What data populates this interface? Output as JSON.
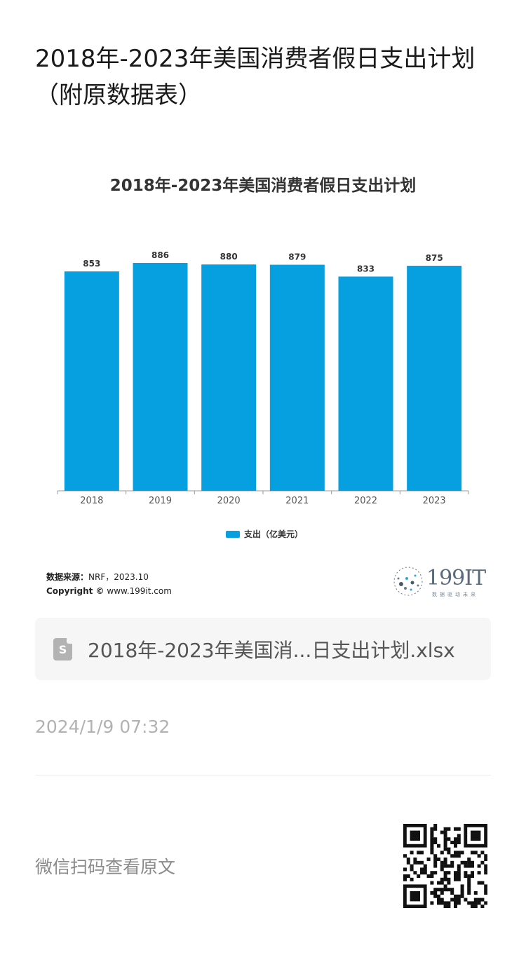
{
  "page": {
    "title": "2018年-2023年美国消费者假日支出计划（附原数据表）"
  },
  "chart_data": {
    "type": "bar",
    "title": "2018年-2023年美国消费者假日支出计划",
    "categories": [
      "2018",
      "2019",
      "2020",
      "2021",
      "2022",
      "2023"
    ],
    "series": [
      {
        "name": "支出（亿美元）",
        "values": [
          853,
          886,
          880,
          879,
          833,
          875
        ]
      }
    ],
    "data_labels": [
      "853",
      "886",
      "880",
      "879",
      "833",
      "875"
    ],
    "xlabel": "",
    "ylabel": "",
    "ylim": [
      0,
      886
    ],
    "grid": false,
    "legend_position": "bottom",
    "bar_color": "#069fe0"
  },
  "source": {
    "label": "数据来源：",
    "value": "NRF，2023.10",
    "copyright_label": "Copyright ©",
    "copyright_value": "www.199it.com"
  },
  "brand": {
    "name": "199IT",
    "tagline": "数据驱动未来"
  },
  "attachment": {
    "file_name": "2018年-2023年美国消...日支出计划.xlsx",
    "icon": "spreadsheet-file-icon",
    "icon_glyph": "S"
  },
  "timestamp": "2024/1/9 07:32",
  "footer": {
    "hint": "微信扫码查看原文",
    "qr_icon": "qr-code-icon"
  }
}
